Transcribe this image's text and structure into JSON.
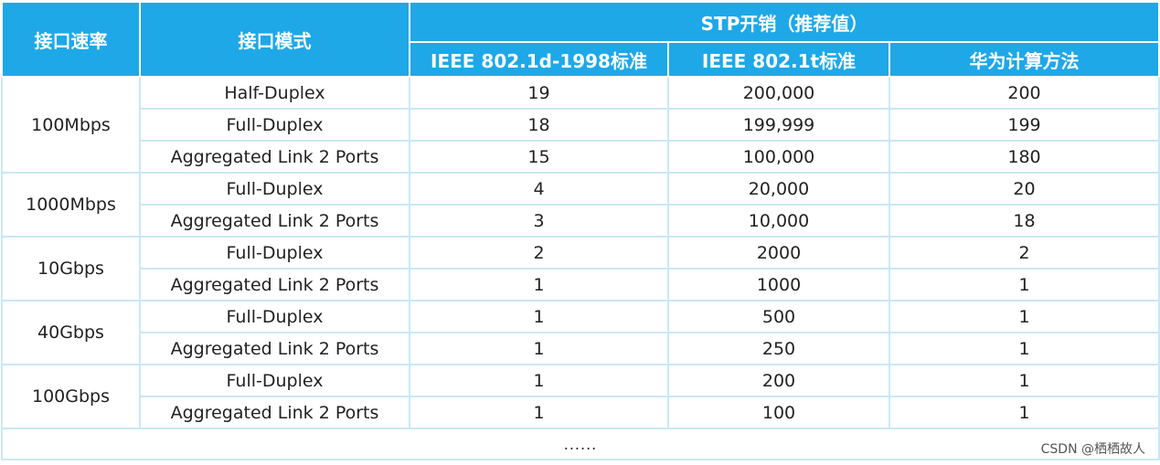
{
  "header": {
    "col_speed": "接口速率",
    "col_mode": "接口模式",
    "group_title": "STP开销（推荐值）",
    "col_8021d": "IEEE 802.1d-1998标准",
    "col_8021t": "IEEE 802.1t标准",
    "col_huawei": "华为计算方法"
  },
  "groups": [
    {
      "speed": "100Mbps",
      "rows": [
        {
          "mode": "Half-Duplex",
          "d": "19",
          "t": "200,000",
          "hw": "200"
        },
        {
          "mode": "Full-Duplex",
          "d": "18",
          "t": "199,999",
          "hw": "199"
        },
        {
          "mode": "Aggregated  Link 2 Ports",
          "d": "15",
          "t": "100,000",
          "hw": "180"
        }
      ]
    },
    {
      "speed": "1000Mbps",
      "rows": [
        {
          "mode": "Full-Duplex",
          "d": "4",
          "t": "20,000",
          "hw": "20"
        },
        {
          "mode": "Aggregated  Link 2 Ports",
          "d": "3",
          "t": "10,000",
          "hw": "18"
        }
      ]
    },
    {
      "speed": "10Gbps",
      "rows": [
        {
          "mode": "Full-Duplex",
          "d": "2",
          "t": "2000",
          "hw": "2"
        },
        {
          "mode": "Aggregated  Link 2 Ports",
          "d": "1",
          "t": "1000",
          "hw": "1"
        }
      ]
    },
    {
      "speed": "40Gbps",
      "rows": [
        {
          "mode": "Full-Duplex",
          "d": "1",
          "t": "500",
          "hw": "1"
        },
        {
          "mode": "Aggregated  Link 2 Ports",
          "d": "1",
          "t": "250",
          "hw": "1"
        }
      ]
    },
    {
      "speed": "100Gbps",
      "rows": [
        {
          "mode": "Full-Duplex",
          "d": "1",
          "t": "200",
          "hw": "1"
        },
        {
          "mode": "Aggregated  Link 2 Ports",
          "d": "1",
          "t": "100",
          "hw": "1"
        }
      ]
    }
  ],
  "footer": {
    "ellipsis": "......",
    "watermark": "CSDN @栖栖故人"
  },
  "colors": {
    "header_bg": "#1ea8e8",
    "header_text": "#ffffff",
    "cell_border": "#c9e8f6"
  }
}
